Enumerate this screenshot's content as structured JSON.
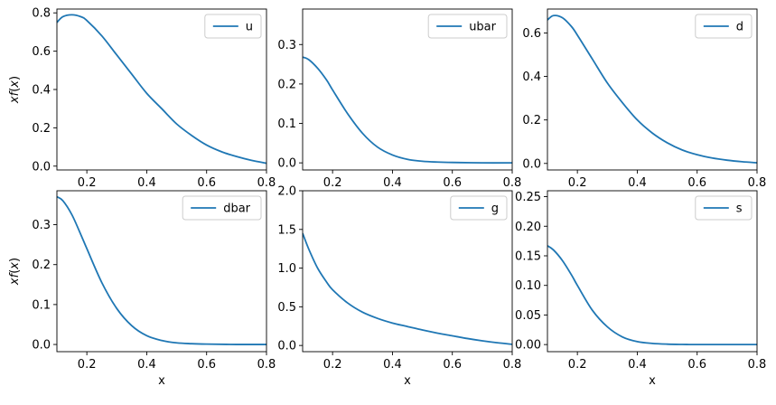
{
  "chart_data": [
    {
      "type": "line",
      "legend": "u",
      "legend_position": "top-right",
      "ylabel": "xf(x)",
      "xlabel": "",
      "xlim": [
        0.1,
        0.8
      ],
      "ylim": [
        -0.02,
        0.82
      ],
      "xticks": [
        0.2,
        0.4,
        0.6,
        0.8
      ],
      "yticks": [
        0.0,
        0.2,
        0.4,
        0.6,
        0.8
      ],
      "series": [
        {
          "name": "u",
          "color": "#1f77b4",
          "x": [
            0.1,
            0.12,
            0.15,
            0.18,
            0.2,
            0.25,
            0.3,
            0.35,
            0.4,
            0.45,
            0.5,
            0.55,
            0.6,
            0.65,
            0.7,
            0.75,
            0.8
          ],
          "y": [
            0.75,
            0.78,
            0.79,
            0.78,
            0.76,
            0.68,
            0.58,
            0.48,
            0.38,
            0.3,
            0.22,
            0.16,
            0.11,
            0.075,
            0.05,
            0.03,
            0.015
          ]
        }
      ]
    },
    {
      "type": "line",
      "legend": "ubar",
      "legend_position": "top-right",
      "ylabel": "",
      "xlabel": "",
      "xlim": [
        0.1,
        0.8
      ],
      "ylim": [
        -0.018,
        0.39
      ],
      "xticks": [
        0.2,
        0.4,
        0.6,
        0.8
      ],
      "yticks": [
        0.0,
        0.1,
        0.2,
        0.3
      ],
      "series": [
        {
          "name": "ubar",
          "color": "#1f77b4",
          "x": [
            0.1,
            0.12,
            0.15,
            0.18,
            0.2,
            0.25,
            0.3,
            0.35,
            0.4,
            0.45,
            0.5,
            0.55,
            0.6,
            0.7,
            0.8
          ],
          "y": [
            0.268,
            0.262,
            0.24,
            0.21,
            0.185,
            0.125,
            0.075,
            0.04,
            0.02,
            0.009,
            0.004,
            0.002,
            0.001,
            0.0,
            0.0
          ]
        }
      ]
    },
    {
      "type": "line",
      "legend": "d",
      "legend_position": "top-right",
      "ylabel": "",
      "xlabel": "",
      "xlim": [
        0.1,
        0.8
      ],
      "ylim": [
        -0.03,
        0.71
      ],
      "xticks": [
        0.2,
        0.4,
        0.6,
        0.8
      ],
      "yticks": [
        0.0,
        0.2,
        0.4,
        0.6
      ],
      "series": [
        {
          "name": "d",
          "color": "#1f77b4",
          "x": [
            0.1,
            0.12,
            0.15,
            0.18,
            0.2,
            0.25,
            0.3,
            0.35,
            0.4,
            0.45,
            0.5,
            0.55,
            0.6,
            0.65,
            0.7,
            0.75,
            0.8
          ],
          "y": [
            0.66,
            0.68,
            0.67,
            0.63,
            0.59,
            0.48,
            0.37,
            0.28,
            0.2,
            0.14,
            0.095,
            0.062,
            0.04,
            0.025,
            0.015,
            0.008,
            0.003
          ]
        }
      ]
    },
    {
      "type": "line",
      "legend": "dbar",
      "legend_position": "top-right",
      "ylabel": "xf(x)",
      "xlabel": "x",
      "xlim": [
        0.1,
        0.8
      ],
      "ylim": [
        -0.018,
        0.385
      ],
      "xticks": [
        0.2,
        0.4,
        0.6,
        0.8
      ],
      "yticks": [
        0.0,
        0.1,
        0.2,
        0.3
      ],
      "series": [
        {
          "name": "dbar",
          "color": "#1f77b4",
          "x": [
            0.1,
            0.12,
            0.15,
            0.18,
            0.2,
            0.25,
            0.3,
            0.35,
            0.4,
            0.45,
            0.5,
            0.55,
            0.6,
            0.7,
            0.8
          ],
          "y": [
            0.37,
            0.36,
            0.325,
            0.275,
            0.24,
            0.155,
            0.09,
            0.047,
            0.022,
            0.01,
            0.004,
            0.002,
            0.001,
            0.0,
            0.0
          ]
        }
      ]
    },
    {
      "type": "line",
      "legend": "g",
      "legend_position": "top-right",
      "ylabel": "",
      "xlabel": "x",
      "xlim": [
        0.1,
        0.8
      ],
      "ylim": [
        -0.08,
        2.0
      ],
      "xticks": [
        0.2,
        0.4,
        0.6,
        0.8
      ],
      "yticks": [
        0.0,
        0.5,
        1.0,
        1.5,
        2.0
      ],
      "series": [
        {
          "name": "g",
          "color": "#1f77b4",
          "x": [
            0.1,
            0.12,
            0.15,
            0.18,
            0.2,
            0.25,
            0.3,
            0.35,
            0.4,
            0.45,
            0.5,
            0.55,
            0.6,
            0.65,
            0.7,
            0.75,
            0.8
          ],
          "y": [
            1.45,
            1.25,
            1.0,
            0.82,
            0.72,
            0.55,
            0.43,
            0.35,
            0.29,
            0.245,
            0.2,
            0.16,
            0.125,
            0.09,
            0.06,
            0.035,
            0.015
          ]
        }
      ]
    },
    {
      "type": "line",
      "legend": "s",
      "legend_position": "top-right",
      "ylabel": "",
      "xlabel": "x",
      "xlim": [
        0.1,
        0.8
      ],
      "ylim": [
        -0.012,
        0.26
      ],
      "xticks": [
        0.2,
        0.4,
        0.6,
        0.8
      ],
      "yticks": [
        0.0,
        0.05,
        0.1,
        0.15,
        0.2,
        0.25
      ],
      "series": [
        {
          "name": "s",
          "color": "#1f77b4",
          "x": [
            0.1,
            0.12,
            0.15,
            0.18,
            0.2,
            0.25,
            0.3,
            0.35,
            0.4,
            0.45,
            0.5,
            0.55,
            0.6,
            0.7,
            0.8
          ],
          "y": [
            0.167,
            0.16,
            0.142,
            0.118,
            0.1,
            0.058,
            0.03,
            0.013,
            0.005,
            0.002,
            0.0007,
            0.0002,
            0.0,
            0.0,
            0.0
          ]
        }
      ]
    }
  ]
}
